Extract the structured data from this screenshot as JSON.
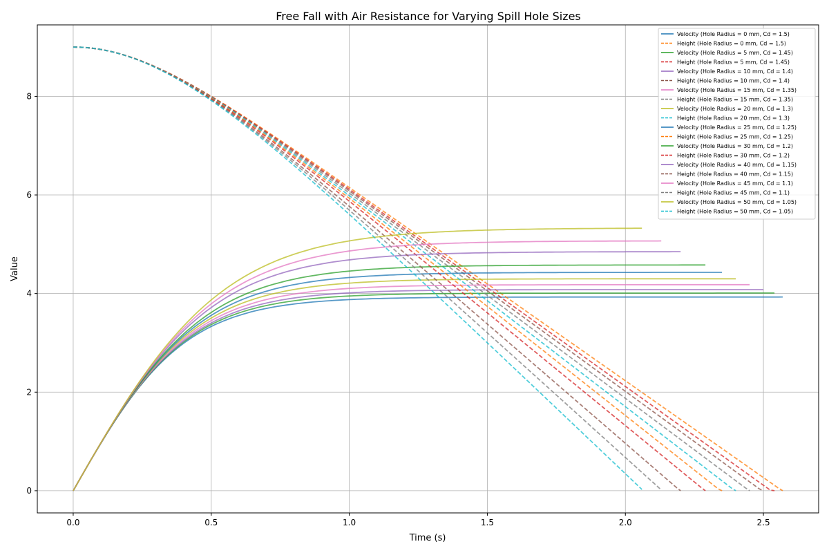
{
  "chart_data": {
    "type": "line",
    "title": "Free Fall with Air Resistance for Varying Spill Hole Sizes",
    "xlabel": "Time (s)",
    "ylabel": "Value",
    "xlim": [
      -0.13,
      2.7
    ],
    "ylim": [
      -0.45,
      9.45
    ],
    "xticks": [
      0.0,
      0.5,
      1.0,
      1.5,
      2.0,
      2.5
    ],
    "xtick_labels": [
      "0.0",
      "0.5",
      "1.0",
      "1.5",
      "2.0",
      "2.5"
    ],
    "yticks": [
      0,
      2,
      4,
      6,
      8
    ],
    "ytick_labels": [
      "0",
      "2",
      "4",
      "6",
      "8"
    ],
    "grid": true,
    "legend_position": "top-right",
    "initial_height": 9.0,
    "series_colors": [
      "#1f77b4",
      "#ff7f0e",
      "#2ca02c",
      "#d62728",
      "#9467bd",
      "#8c564b",
      "#e377c2",
      "#7f7f7f",
      "#bcbd22",
      "#17becf"
    ],
    "cases": [
      {
        "terminal_velocity": 3.93,
        "end_time": 2.57,
        "velocity_label": "Velocity (Hole Radius = 0 mm, Cd = 1.5)",
        "height_label": "Height (Hole Radius = 0 mm, Cd = 1.5)"
      },
      {
        "terminal_velocity": 4.01,
        "end_time": 2.54,
        "velocity_label": "Velocity (Hole Radius = 5 mm, Cd = 1.45)",
        "height_label": "Height (Hole Radius = 5 mm, Cd = 1.45)"
      },
      {
        "terminal_velocity": 4.08,
        "end_time": 2.5,
        "velocity_label": "Velocity (Hole Radius = 10 mm, Cd = 1.4)",
        "height_label": "Height (Hole Radius = 10 mm, Cd = 1.4)"
      },
      {
        "terminal_velocity": 4.18,
        "end_time": 2.45,
        "velocity_label": "Velocity (Hole Radius = 15 mm, Cd = 1.35)",
        "height_label": "Height (Hole Radius = 15 mm, Cd = 1.35)"
      },
      {
        "terminal_velocity": 4.3,
        "end_time": 2.4,
        "velocity_label": "Velocity (Hole Radius = 20 mm, Cd = 1.3)",
        "height_label": "Height (Hole Radius = 20 mm, Cd = 1.3)"
      },
      {
        "terminal_velocity": 4.43,
        "end_time": 2.35,
        "velocity_label": "Velocity (Hole Radius = 25 mm, Cd = 1.25)",
        "height_label": "Height (Hole Radius = 25 mm, Cd = 1.25)"
      },
      {
        "terminal_velocity": 4.58,
        "end_time": 2.29,
        "velocity_label": "Velocity (Hole Radius = 30 mm, Cd = 1.2)",
        "height_label": "Height (Hole Radius = 30 mm, Cd = 1.2)"
      },
      {
        "terminal_velocity": 4.85,
        "end_time": 2.2,
        "velocity_label": "Velocity (Hole Radius = 40 mm, Cd = 1.15)",
        "height_label": "Height (Hole Radius = 40 mm, Cd = 1.15)"
      },
      {
        "terminal_velocity": 5.07,
        "end_time": 2.13,
        "velocity_label": "Velocity (Hole Radius = 45 mm, Cd = 1.1)",
        "height_label": "Height (Hole Radius = 45 mm, Cd = 1.1)"
      },
      {
        "terminal_velocity": 5.33,
        "end_time": 2.06,
        "velocity_label": "Velocity (Hole Radius = 50 mm, Cd = 1.05)",
        "height_label": "Height (Hole Radius = 50 mm, Cd = 1.05)"
      }
    ]
  }
}
